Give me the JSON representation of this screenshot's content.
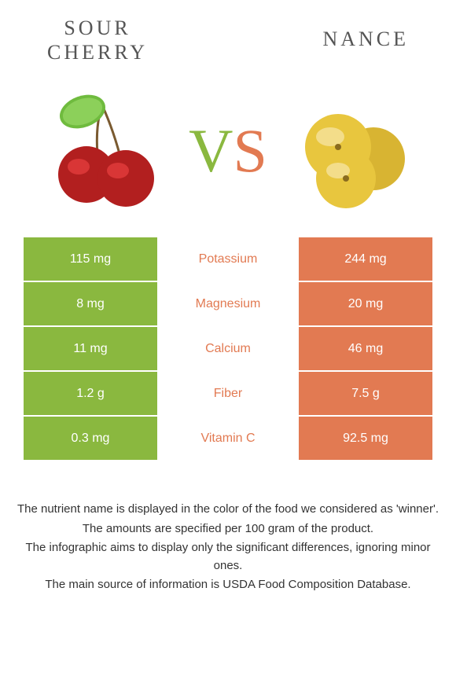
{
  "left_food": {
    "name_line1": "SOUR",
    "name_line2": "CHERRY",
    "base_color": "#8ab83f",
    "fruit_colors": {
      "body": "#b21f1f",
      "highlight": "#d93636",
      "leaf": "#6fbb3e",
      "stem": "#7a5a30"
    }
  },
  "right_food": {
    "name": "NANCE",
    "base_color": "#e27a52",
    "fruit_colors": {
      "body": "#e8c63e",
      "highlight": "#f3dd8a",
      "shadow": "#c9a52a"
    }
  },
  "vs": {
    "v": "V",
    "s": "S"
  },
  "nutrients": [
    {
      "name": "Potassium",
      "left": "115 mg",
      "right": "244 mg",
      "winner": "right"
    },
    {
      "name": "Magnesium",
      "left": "8 mg",
      "right": "20 mg",
      "winner": "right"
    },
    {
      "name": "Calcium",
      "left": "11 mg",
      "right": "46 mg",
      "winner": "right"
    },
    {
      "name": "Fiber",
      "left": "1.2 g",
      "right": "7.5 g",
      "winner": "right"
    },
    {
      "name": "Vitamin C",
      "left": "0.3 mg",
      "right": "92.5 mg",
      "winner": "right"
    }
  ],
  "colors": {
    "left_cell_bg": "#8ab83f",
    "right_cell_bg": "#e27a52",
    "winner_text_left": "#8ab83f",
    "winner_text_right": "#e27a52"
  },
  "footer": [
    "The nutrient name is displayed in the color of the food we considered as 'winner'.",
    "The amounts are specified per 100 gram of the product.",
    "The infographic aims to display only the significant differences, ignoring minor ones.",
    "The main source of information is USDA Food Composition Database."
  ]
}
